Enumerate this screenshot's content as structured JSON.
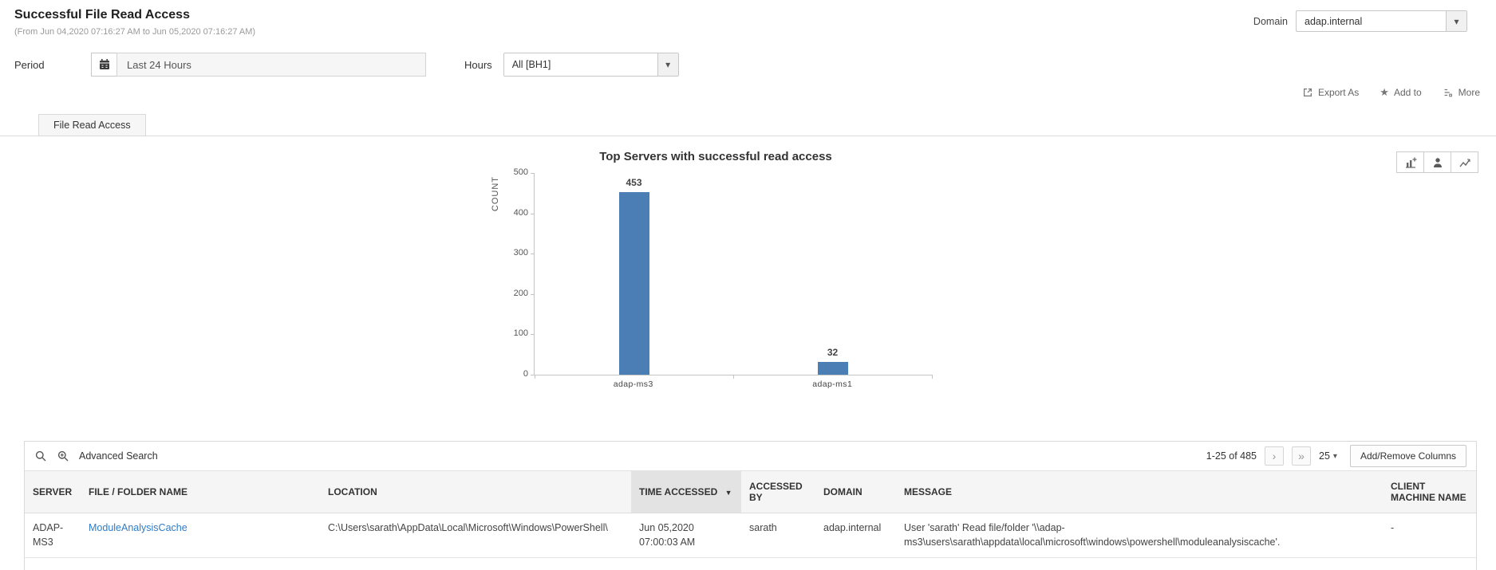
{
  "colors": {
    "bar": "#4a7eb5",
    "link": "#2e7cc7",
    "table_header_bg": "#f5f5f5",
    "sorted_column_bg": "#e3e3e3"
  },
  "icons": {
    "chevron_down": "▾",
    "sort_caret": "▼",
    "star": "★",
    "next_page": "›",
    "last_page": "»",
    "page_size_caret": "▾"
  },
  "header": {
    "title": "Successful File Read Access",
    "subtitle": "(From Jun 04,2020 07:16:27 AM to Jun 05,2020 07:16:27 AM)",
    "domain_label": "Domain",
    "domain_value": "adap.internal"
  },
  "filters": {
    "period_label": "Period",
    "period_value": "Last 24 Hours",
    "hours_label": "Hours",
    "hours_value": "All [BH1]"
  },
  "actions": {
    "export_as": "Export As",
    "add_to": "Add to",
    "more": "More"
  },
  "tabs": [
    {
      "label": "File Read Access",
      "active": true
    }
  ],
  "chart_data": {
    "type": "bar",
    "title": "Top Servers with successful read access",
    "categories": [
      "adap-ms3",
      "adap-ms1"
    ],
    "values": [
      453,
      32
    ],
    "xlabel": "",
    "ylabel": "COUNT",
    "ylim": [
      0,
      500
    ],
    "yticks": [
      0,
      100,
      200,
      300,
      400,
      500
    ],
    "bar_color": "#4a7eb5",
    "grid": false,
    "legend": "none",
    "value_labels": true
  },
  "table": {
    "advanced_search_label": "Advanced Search",
    "pagination": {
      "range": "1-25 of 485",
      "page_size": "25",
      "add_remove_columns_label": "Add/Remove Columns"
    },
    "columns": [
      "SERVER",
      "FILE / FOLDER NAME",
      "LOCATION",
      "TIME ACCESSED",
      "ACCESSED BY",
      "DOMAIN",
      "MESSAGE",
      "CLIENT MACHINE NAME"
    ],
    "sort": {
      "column": "TIME ACCESSED",
      "direction": "desc"
    },
    "rows": [
      {
        "server": "ADAP-MS3",
        "file_folder_name": "ModuleAnalysisCache",
        "location": "C:\\Users\\sarath\\AppData\\Local\\Microsoft\\Windows\\PowerShell\\",
        "time_accessed": "Jun 05,2020 07:00:03 AM",
        "accessed_by": "sarath",
        "domain": "adap.internal",
        "message": "User 'sarath' Read file/folder '\\\\adap-ms3\\users\\sarath\\appdata\\local\\microsoft\\windows\\powershell\\moduleanalysiscache'.",
        "client_machine_name": "-"
      }
    ]
  }
}
